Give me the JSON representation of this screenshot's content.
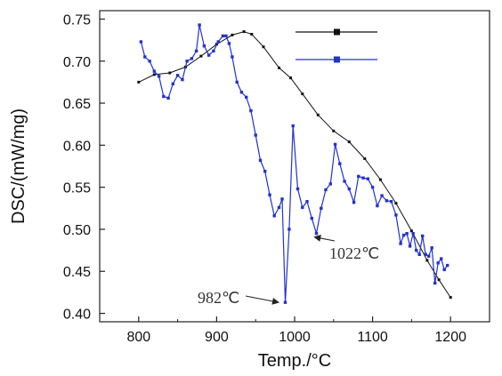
{
  "chart_data": {
    "type": "line",
    "xlabel": "Temp./°C",
    "ylabel": "DSC/(mW/mg)",
    "xlim": [
      750,
      1250
    ],
    "ylim": [
      0.39,
      0.76
    ],
    "x_ticks": [
      800,
      900,
      1000,
      1100,
      1200
    ],
    "y_ticks": [
      0.4,
      0.45,
      0.5,
      0.55,
      0.6,
      0.65,
      0.7,
      0.75
    ],
    "x_tick_labels": [
      "800",
      "900",
      "1000",
      "1100",
      "1200"
    ],
    "y_tick_labels": [
      "0.40",
      "0.45",
      "0.50",
      "0.55",
      "0.60",
      "0.65",
      "0.70",
      "0.75"
    ],
    "legend": {
      "placement": "top-right",
      "entries": [
        "",
        ""
      ]
    },
    "series": [
      {
        "color": "#111111",
        "marker": "square",
        "x": [
          800,
          820,
          840,
          860,
          880,
          900,
          920,
          935,
          945,
          960,
          980,
          995,
          1010,
          1030,
          1050,
          1070,
          1090,
          1110,
          1130,
          1150,
          1170,
          1185,
          1200
        ],
        "y": [
          0.675,
          0.684,
          0.686,
          0.693,
          0.706,
          0.72,
          0.731,
          0.735,
          0.732,
          0.717,
          0.692,
          0.68,
          0.661,
          0.636,
          0.617,
          0.604,
          0.584,
          0.559,
          0.531,
          0.498,
          0.463,
          0.44,
          0.419
        ]
      },
      {
        "color": "#2233cc",
        "marker": "square",
        "x": [
          803,
          808,
          814,
          820,
          826,
          832,
          838,
          844,
          850,
          856,
          862,
          868,
          874,
          878,
          884,
          890,
          896,
          902,
          908,
          912,
          916,
          920,
          926,
          932,
          938,
          944,
          950,
          956,
          962,
          968,
          974,
          980,
          984,
          988,
          993,
          998,
          1004,
          1010,
          1016,
          1022,
          1028,
          1034,
          1040,
          1046,
          1052,
          1058,
          1064,
          1070,
          1076,
          1082,
          1088,
          1094,
          1100,
          1106,
          1112,
          1118,
          1124,
          1130,
          1136,
          1140,
          1144,
          1148,
          1152,
          1156,
          1160,
          1164,
          1168,
          1172,
          1176,
          1180,
          1184,
          1188,
          1192,
          1196
        ],
        "y": [
          0.723,
          0.705,
          0.7,
          0.688,
          0.682,
          0.658,
          0.656,
          0.673,
          0.683,
          0.678,
          0.7,
          0.703,
          0.712,
          0.743,
          0.718,
          0.707,
          0.712,
          0.723,
          0.73,
          0.73,
          0.721,
          0.705,
          0.675,
          0.663,
          0.657,
          0.641,
          0.612,
          0.582,
          0.569,
          0.541,
          0.516,
          0.526,
          0.536,
          0.413,
          0.5,
          0.623,
          0.548,
          0.526,
          0.533,
          0.513,
          0.495,
          0.525,
          0.547,
          0.554,
          0.601,
          0.578,
          0.557,
          0.548,
          0.532,
          0.563,
          0.561,
          0.56,
          0.55,
          0.528,
          0.54,
          0.534,
          0.533,
          0.517,
          0.483,
          0.493,
          0.495,
          0.48,
          0.495,
          0.475,
          0.47,
          0.492,
          0.47,
          0.468,
          0.478,
          0.436,
          0.46,
          0.465,
          0.452,
          0.457
        ]
      }
    ],
    "annotations": [
      {
        "text": "982℃",
        "point": [
          984,
          0.413
        ]
      },
      {
        "text": "1022℃",
        "point": [
          1022,
          0.495
        ]
      }
    ]
  }
}
